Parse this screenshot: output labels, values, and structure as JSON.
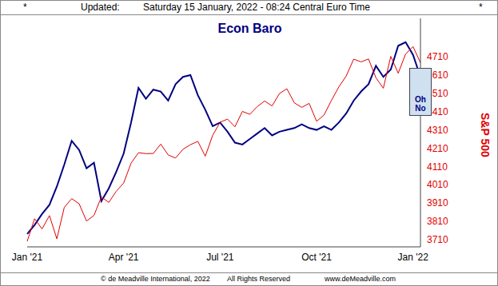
{
  "chart_data": {
    "type": "line",
    "header": [
      "*",
      "Updated:",
      "Saturday 15 January, 2022 - 08:24 Central Euro Time",
      "*"
    ],
    "footer": [
      "© de Meadville International, 2022",
      "All Rights Reserved",
      "www.deMeadville.com"
    ],
    "annotations": [
      "Oh No"
    ],
    "categories": [
      "Jan '21",
      null,
      null,
      null,
      null,
      null,
      null,
      null,
      null,
      null,
      null,
      null,
      null,
      "Apr '21",
      null,
      null,
      null,
      null,
      null,
      null,
      null,
      null,
      null,
      null,
      null,
      null,
      "Jul '21",
      null,
      null,
      null,
      null,
      null,
      null,
      null,
      null,
      null,
      null,
      null,
      null,
      "Oct '21",
      null,
      null,
      null,
      null,
      null,
      null,
      null,
      null,
      null,
      null,
      null,
      null,
      "Jan '22",
      null
    ],
    "series": [
      {
        "name": "Econ Baro",
        "color": "#000080",
        "values": [
          3740,
          3790,
          3850,
          3900,
          4000,
          4120,
          4250,
          4200,
          4100,
          4130,
          3920,
          3990,
          4080,
          4180,
          4350,
          4540,
          4480,
          4530,
          4520,
          4470,
          4560,
          4600,
          4610,
          4500,
          4420,
          4330,
          4350,
          4300,
          4240,
          4230,
          4260,
          4290,
          4320,
          4280,
          4300,
          4310,
          4320,
          4340,
          4320,
          4310,
          4330,
          4310,
          4350,
          4400,
          4470,
          4520,
          4560,
          4660,
          4600,
          4640,
          4770,
          4790,
          4720,
          4600
        ]
      },
      {
        "name": "S&P 500",
        "color": "#e00000",
        "values": [
          3700,
          3824,
          3768,
          3841,
          3714,
          3886,
          3934,
          3906,
          3811,
          3842,
          3943,
          3913,
          3974,
          4019,
          4128,
          4185,
          4180,
          4181,
          4232,
          4173,
          4156,
          4204,
          4229,
          4247,
          4166,
          4280,
          4352,
          4369,
          4327,
          4411,
          4395,
          4437,
          4468,
          4441,
          4509,
          4535,
          4458,
          4433,
          4455,
          4357,
          4391,
          4471,
          4545,
          4605,
          4697,
          4682,
          4698,
          4595,
          4538,
          4712,
          4620,
          4725,
          4766,
          4677
        ]
      }
    ],
    "ylim": [
      3670,
      4920
    ],
    "yticks": [
      3710,
      3810,
      3910,
      4010,
      4110,
      4210,
      4310,
      4410,
      4510,
      4610,
      4710
    ],
    "grid": false
  }
}
